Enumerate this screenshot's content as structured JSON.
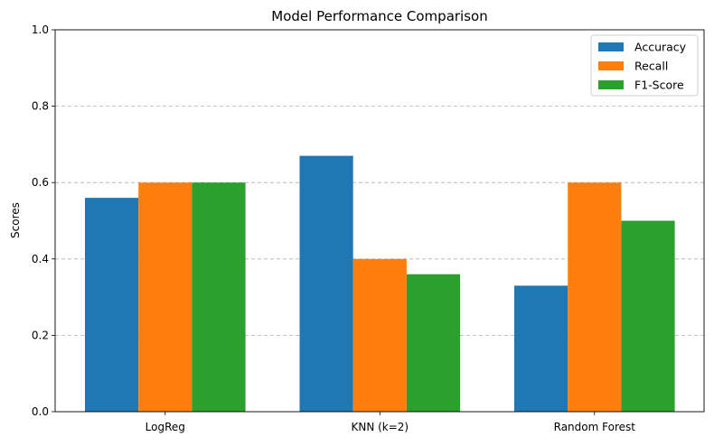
{
  "chart_data": {
    "type": "bar",
    "title": "Model Performance Comparison",
    "xlabel": "",
    "ylabel": "Scores",
    "categories": [
      "LogReg",
      "KNN (k=2)",
      "Random Forest"
    ],
    "series": [
      {
        "name": "Accuracy",
        "color": "#1f77b4",
        "values": [
          0.56,
          0.67,
          0.33
        ]
      },
      {
        "name": "Recall",
        "color": "#ff7f0e",
        "values": [
          0.6,
          0.4,
          0.6
        ]
      },
      {
        "name": "F1-Score",
        "color": "#2ca02c",
        "values": [
          0.6,
          0.36,
          0.5
        ]
      }
    ],
    "ylim": [
      0,
      1.0
    ],
    "yticks": [
      "0.0",
      "0.2",
      "0.4",
      "0.6",
      "0.8",
      "1.0"
    ],
    "grid": "y-axis dashed",
    "legend_position": "top-right"
  }
}
